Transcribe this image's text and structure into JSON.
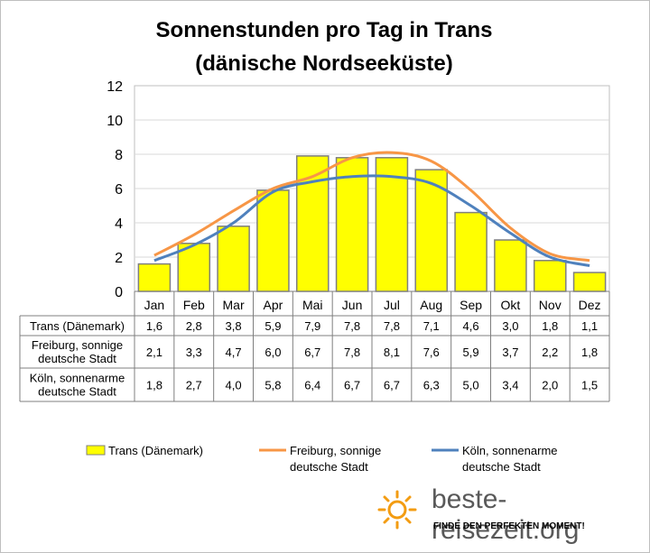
{
  "title_line1": "Sonnenstunden pro Tag in Trans",
  "title_line2": "(dänische Nordseeküste)",
  "chart_data": {
    "type": "bar",
    "categories": [
      "Jan",
      "Feb",
      "Mar",
      "Apr",
      "Mai",
      "Jun",
      "Jul",
      "Aug",
      "Sep",
      "Okt",
      "Nov",
      "Dez"
    ],
    "ylim": [
      0,
      12
    ],
    "yticks": [
      "0",
      "2",
      "4",
      "6",
      "8",
      "10",
      "12"
    ],
    "grid": true,
    "legend_position": "bottom",
    "series": [
      {
        "name": "Trans (Dänemark)",
        "label": "Trans (Dänemark)",
        "kind": "bar",
        "color": "#ffff00",
        "values": [
          1.6,
          2.8,
          3.8,
          5.9,
          7.9,
          7.8,
          7.8,
          7.1,
          4.6,
          3.0,
          1.8,
          1.1
        ],
        "display": [
          "1,6",
          "2,8",
          "3,8",
          "5,9",
          "7,9",
          "7,8",
          "7,8",
          "7,1",
          "4,6",
          "3,0",
          "1,8",
          "1,1"
        ]
      },
      {
        "name": "Freiburg, sonnige deutsche Stadt",
        "label_lines": [
          "Freiburg, sonnige",
          "deutsche Stadt"
        ],
        "kind": "line",
        "color": "#f79646",
        "values": [
          2.1,
          3.3,
          4.7,
          6.0,
          6.7,
          7.8,
          8.1,
          7.6,
          5.9,
          3.7,
          2.2,
          1.8
        ],
        "display": [
          "2,1",
          "3,3",
          "4,7",
          "6,0",
          "6,7",
          "7,8",
          "8,1",
          "7,6",
          "5,9",
          "3,7",
          "2,2",
          "1,8"
        ]
      },
      {
        "name": "Köln, sonnenarme deutsche Stadt",
        "label_lines": [
          "Köln, sonnenarme",
          "deutsche Stadt"
        ],
        "kind": "line",
        "color": "#4f81bd",
        "values": [
          1.8,
          2.7,
          4.0,
          5.8,
          6.4,
          6.7,
          6.7,
          6.3,
          5.0,
          3.4,
          2.0,
          1.5
        ],
        "display": [
          "1,8",
          "2,7",
          "4,0",
          "5,8",
          "6,4",
          "6,7",
          "6,7",
          "6,3",
          "5,0",
          "3,4",
          "2,0",
          "1,5"
        ]
      }
    ]
  },
  "legend": {
    "trans_label": "Trans (Dänemark)",
    "freiburg_line1": "Freiburg, sonnige",
    "freiburg_line2": "deutsche Stadt",
    "koeln_line1": "Köln, sonnenarme",
    "koeln_line2": "deutsche Stadt"
  },
  "logo": {
    "name": "beste-reisezeit.org",
    "tagline": "FINDE DEN PERFEKTEN MOMENT!"
  }
}
